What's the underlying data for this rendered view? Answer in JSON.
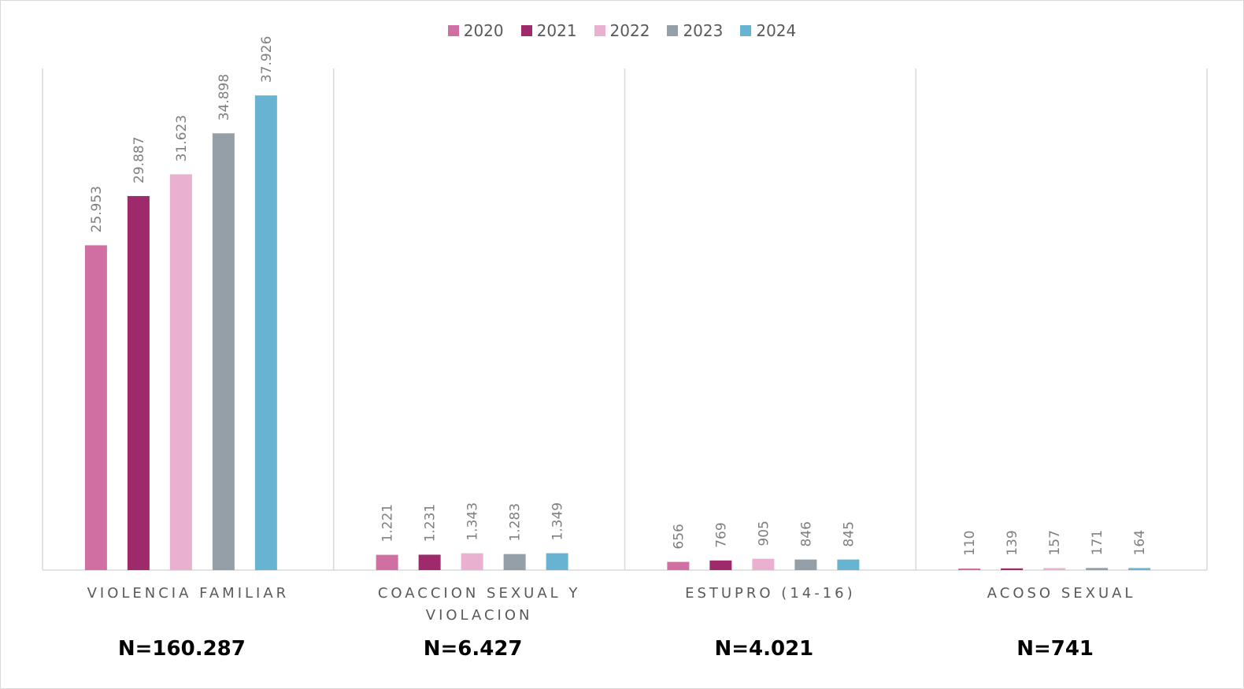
{
  "chart_data": {
    "type": "bar",
    "categories": [
      "VIOLENCIA FAMILIAR",
      "COACCION SEXUAL Y VIOLACION",
      "ESTUPRO (14-16)",
      "ACOSO SEXUAL"
    ],
    "totals": [
      "N=160.287",
      "N=6.427",
      "N=4.021",
      "N=741"
    ],
    "series": [
      {
        "name": "2020",
        "color": "#cf6fa2",
        "values": [
          25953,
          1221,
          656,
          110
        ],
        "labels": [
          "25.953",
          "1.221",
          "656",
          "110"
        ]
      },
      {
        "name": "2021",
        "color": "#9e2a6b",
        "values": [
          29887,
          1231,
          769,
          139
        ],
        "labels": [
          "29.887",
          "1.231",
          "769",
          "139"
        ]
      },
      {
        "name": "2022",
        "color": "#e9b0cf",
        "values": [
          31623,
          1343,
          905,
          157
        ],
        "labels": [
          "31.623",
          "1.343",
          "905",
          "157"
        ]
      },
      {
        "name": "2023",
        "color": "#959fa8",
        "values": [
          34898,
          1283,
          846,
          171
        ],
        "labels": [
          "34.898",
          "1.283",
          "846",
          "171"
        ]
      },
      {
        "name": "2024",
        "color": "#67b4d2",
        "values": [
          37926,
          1349,
          845,
          164
        ],
        "labels": [
          "37.926",
          "1.349",
          "845",
          "164"
        ]
      }
    ],
    "ylim": [
      0,
      40000
    ],
    "legend_position": "top-center",
    "grid": false
  }
}
